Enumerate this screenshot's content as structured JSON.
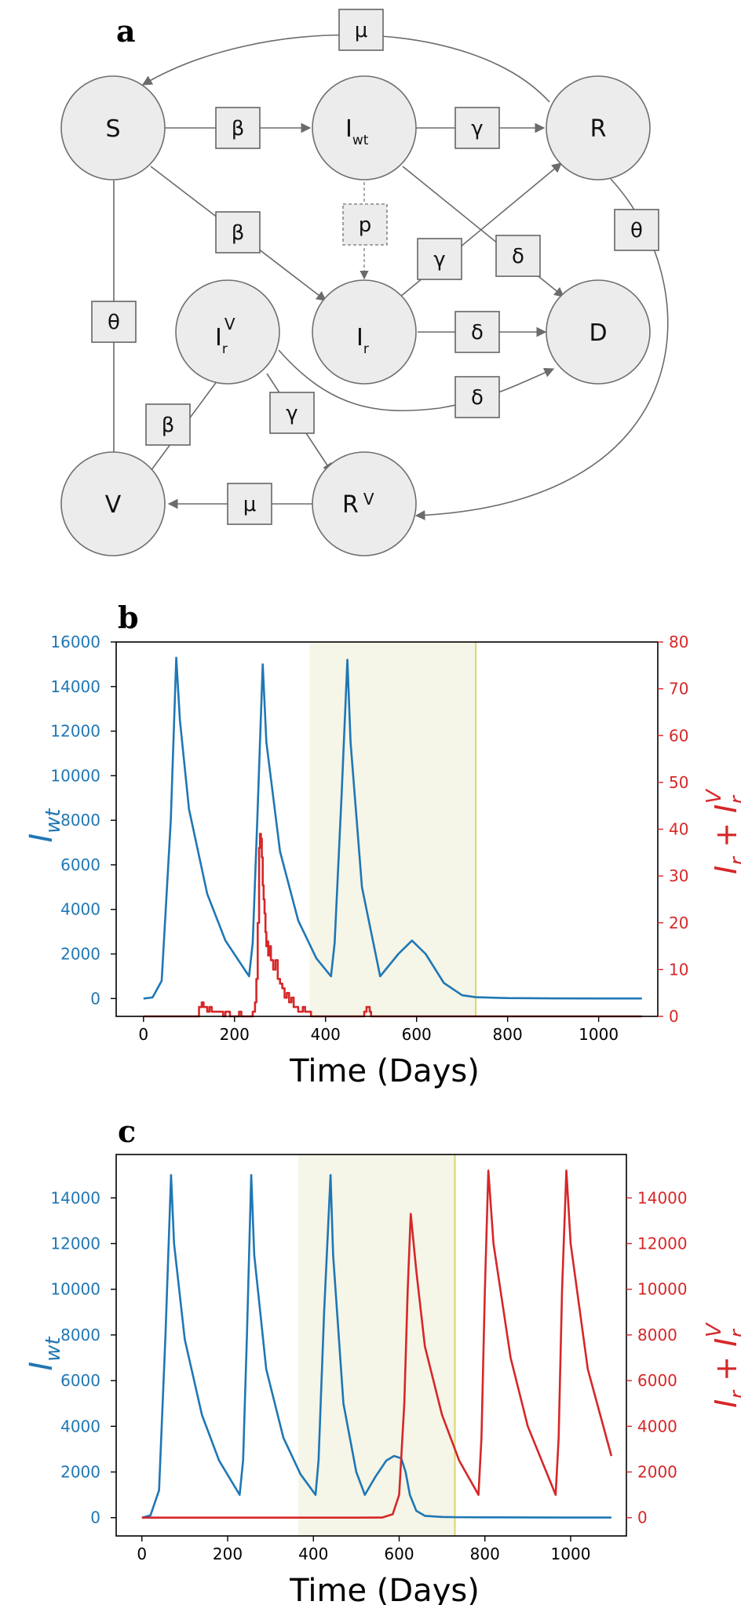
{
  "panel_labels": {
    "a": "a",
    "b": "b",
    "c": "c"
  },
  "diagram": {
    "nodes": {
      "S": "S",
      "Iwt_main": "I",
      "Iwt_sub": "wt",
      "R": "R",
      "IrV_main": "I",
      "IrV_sub": "r",
      "IrV_sup": "V",
      "Ir_main": "I",
      "Ir_sub": "r",
      "D": "D",
      "V": "V",
      "RV_main": "R",
      "RV_sup": "V"
    },
    "rates": {
      "mu_top": "μ",
      "beta_s_iwt": "β",
      "gamma_iwt_r": "γ",
      "beta_s_ir": "β",
      "p_iwt_ir": "p",
      "gamma_ir_r": "γ",
      "delta_iwt_d": "δ",
      "theta_r_rv": "θ",
      "theta_s_v": "θ",
      "delta_ir_d": "δ",
      "delta_irv_d": "δ",
      "beta_v_irv": "β",
      "gamma_irv_rv": "γ",
      "mu_rv_v": "μ"
    }
  },
  "colors": {
    "wild_type": "#1f77b4",
    "resistant": "#d62728",
    "shade": "#f5f5e8",
    "vline": "#dcd978"
  },
  "axis_labels": {
    "x": "Time (Days)",
    "y_left_main": "I",
    "y_left_sub": "wt",
    "y_right_1": "I",
    "y_right_1_sub": "r",
    "y_right_plus": " + ",
    "y_right_2": "I",
    "y_right_2_sub": "r",
    "y_right_2_sup": "V"
  },
  "chart_data": [
    {
      "panel": "b",
      "type": "line",
      "xlabel": "Time (Days)",
      "xlim": [
        -60,
        1130
      ],
      "xticks": [
        0,
        200,
        400,
        600,
        800,
        1000
      ],
      "ylim_left": [
        -800,
        16000
      ],
      "yticks_left": [
        0,
        2000,
        4000,
        6000,
        8000,
        10000,
        12000,
        14000,
        16000
      ],
      "ylim_right": [
        0,
        80
      ],
      "yticks_right": [
        0,
        10,
        20,
        30,
        40,
        50,
        60,
        70,
        80
      ],
      "shaded_region": [
        365,
        730
      ],
      "vertical_line": 730,
      "series": [
        {
          "axis": "left",
          "color": "#1f77b4",
          "x": [
            0,
            20,
            40,
            60,
            72,
            80,
            100,
            140,
            180,
            232,
            240,
            250,
            262,
            270,
            300,
            340,
            380,
            412,
            420,
            435,
            448,
            455,
            480,
            520,
            560,
            590,
            620,
            660,
            700,
            730,
            800,
            900,
            1000,
            1095
          ],
          "y": [
            0,
            50,
            800,
            8000,
            15300,
            12500,
            8500,
            4700,
            2600,
            1000,
            2500,
            8000,
            15000,
            11500,
            6600,
            3500,
            1800,
            1000,
            2500,
            9000,
            15200,
            11500,
            5000,
            1000,
            2000,
            2600,
            2000,
            700,
            150,
            60,
            20,
            8,
            5,
            5
          ]
        },
        {
          "axis": "right",
          "color": "#d62728",
          "step": true,
          "x": [
            0,
            118,
            122,
            128,
            132,
            140,
            145,
            150,
            160,
            175,
            180,
            190,
            210,
            215,
            230,
            240,
            245,
            248,
            251,
            254,
            256,
            258,
            260,
            262,
            264,
            266,
            268,
            270,
            272,
            274,
            276,
            280,
            285,
            290,
            295,
            300,
            305,
            310,
            315,
            320,
            325,
            330,
            340,
            350,
            355,
            360,
            368,
            480,
            485,
            490,
            497,
            500,
            505,
            1095
          ],
          "y": [
            0,
            0,
            2,
            3,
            2,
            1,
            2,
            1,
            1,
            0,
            1,
            0,
            1,
            0,
            0,
            1,
            3,
            8,
            20,
            36,
            39,
            38,
            34,
            28,
            25,
            22,
            18,
            15,
            16,
            13,
            15,
            12,
            10,
            12,
            8,
            7,
            6,
            4,
            5,
            3,
            4,
            2,
            1,
            2,
            1,
            1,
            0,
            0,
            1,
            2,
            1,
            0,
            0,
            0
          ]
        }
      ]
    },
    {
      "panel": "c",
      "type": "line",
      "xlabel": "Time (Days)",
      "xlim": [
        -60,
        1130
      ],
      "xticks": [
        0,
        200,
        400,
        600,
        800,
        1000
      ],
      "ylim_left": [
        -800,
        15900
      ],
      "yticks_left": [
        0,
        2000,
        4000,
        6000,
        8000,
        10000,
        12000,
        14000
      ],
      "ylim_right": [
        -800,
        15900
      ],
      "yticks_right": [
        0,
        2000,
        4000,
        6000,
        8000,
        10000,
        12000,
        14000
      ],
      "shaded_region": [
        365,
        730
      ],
      "vertical_line": 730,
      "series": [
        {
          "axis": "left",
          "color": "#1f77b4",
          "x": [
            0,
            20,
            40,
            55,
            68,
            75,
            100,
            140,
            180,
            228,
            236,
            245,
            255,
            262,
            290,
            330,
            370,
            405,
            412,
            425,
            440,
            446,
            470,
            500,
            520,
            545,
            570,
            588,
            605,
            615,
            625,
            640,
            660,
            700,
            730,
            800,
            900,
            1000,
            1095
          ],
          "y": [
            0,
            100,
            1200,
            8000,
            15000,
            12000,
            7800,
            4500,
            2500,
            1000,
            2500,
            8000,
            15000,
            11500,
            6500,
            3500,
            1900,
            1000,
            2500,
            9000,
            15000,
            11500,
            5000,
            2000,
            1000,
            1800,
            2500,
            2700,
            2600,
            2000,
            1000,
            300,
            80,
            30,
            20,
            15,
            10,
            5,
            5
          ]
        },
        {
          "axis": "right",
          "color": "#d62728",
          "x": [
            0,
            500,
            560,
            585,
            600,
            612,
            620,
            627,
            640,
            660,
            700,
            740,
            785,
            792,
            800,
            808,
            820,
            860,
            900,
            965,
            972,
            980,
            990,
            1000,
            1040,
            1095
          ],
          "y": [
            0,
            0,
            5,
            150,
            1000,
            5000,
            10000,
            13300,
            10800,
            7500,
            4500,
            2500,
            1000,
            3500,
            10000,
            15200,
            12000,
            7000,
            4000,
            1000,
            3500,
            10000,
            15200,
            12000,
            6500,
            2700
          ]
        }
      ]
    }
  ]
}
